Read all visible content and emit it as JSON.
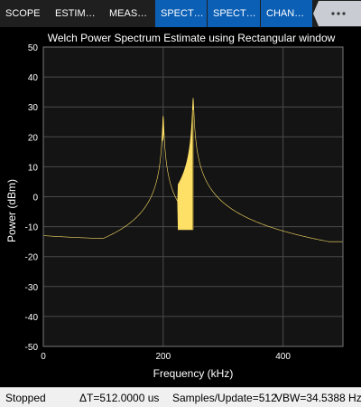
{
  "toolstrip": {
    "tabs": [
      {
        "label": "SCOPE",
        "active": false
      },
      {
        "label": "ESTIM…",
        "active": false
      },
      {
        "label": "MEAS…",
        "active": false
      },
      {
        "label": "SPECT…",
        "active": true
      },
      {
        "label": "SPECT…",
        "active": true
      },
      {
        "label": "CHAN…",
        "active": true
      }
    ],
    "overflow_icon": "more-options-icon"
  },
  "chart_data": {
    "type": "line",
    "title": "Welch Power Spectrum Estimate using Rectangular window",
    "xlabel": "Frequency (kHz)",
    "ylabel": "Power (dBm)",
    "xlim": [
      0,
      500
    ],
    "ylim": [
      -50,
      50
    ],
    "xticks": [
      0,
      200,
      400
    ],
    "yticks": [
      -50,
      -40,
      -30,
      -20,
      -10,
      0,
      10,
      20,
      30,
      40,
      50
    ],
    "grid": true,
    "series": [
      {
        "color": "#ffe066",
        "peaks": [
          {
            "frequency": 200,
            "power": 27
          },
          {
            "frequency": 250,
            "power": 33
          }
        ],
        "floor_upper_left": -15,
        "floor_lower_left": -20,
        "floor_upper_right": -15,
        "floor_lower_right": -25
      }
    ],
    "colors": {
      "background": "#141414",
      "grid": "#4a4a4a",
      "axis_text": "#ffffff",
      "trace": "#ffe066"
    }
  },
  "statusbar": {
    "state": "Stopped",
    "delta_t": "ΔT=512.0000 us",
    "samples": "Samples/Update=512",
    "vbw": "VBW=34.5388 Hz"
  }
}
